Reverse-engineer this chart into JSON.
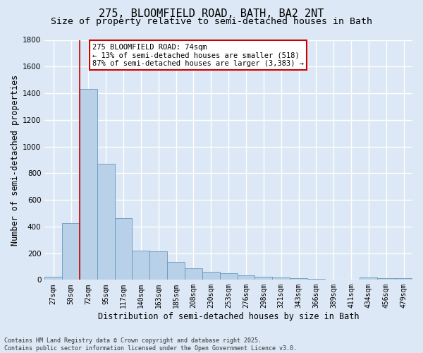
{
  "title_line1": "275, BLOOMFIELD ROAD, BATH, BA2 2NT",
  "title_line2": "Size of property relative to semi-detached houses in Bath",
  "xlabel": "Distribution of semi-detached houses by size in Bath",
  "ylabel": "Number of semi-detached properties",
  "bar_values": [
    25,
    425,
    1430,
    870,
    460,
    220,
    215,
    135,
    85,
    60,
    48,
    35,
    25,
    18,
    12,
    5,
    3,
    2,
    20,
    15,
    10
  ],
  "bin_labels": [
    "27sqm",
    "50sqm",
    "72sqm",
    "95sqm",
    "117sqm",
    "140sqm",
    "163sqm",
    "185sqm",
    "208sqm",
    "230sqm",
    "253sqm",
    "276sqm",
    "298sqm",
    "321sqm",
    "343sqm",
    "366sqm",
    "389sqm",
    "411sqm",
    "434sqm",
    "456sqm",
    "479sqm"
  ],
  "bar_color": "#b8d0e8",
  "bar_edge_color": "#6699bb",
  "property_bin_index": 2,
  "vline_color": "#cc0000",
  "annotation_line1": "275 BLOOMFIELD ROAD: 74sqm",
  "annotation_line2": "← 13% of semi-detached houses are smaller (518)",
  "annotation_line3": "87% of semi-detached houses are larger (3,383) →",
  "annotation_box_color": "#ffffff",
  "annotation_border_color": "#cc0000",
  "ylim": [
    0,
    1800
  ],
  "yticks": [
    0,
    200,
    400,
    600,
    800,
    1000,
    1200,
    1400,
    1600,
    1800
  ],
  "background_color": "#dce8f5",
  "grid_color": "#ffffff",
  "footnote": "Contains HM Land Registry data © Crown copyright and database right 2025.\nContains public sector information licensed under the Open Government Licence v3.0.",
  "title_fontsize": 11,
  "subtitle_fontsize": 9.5,
  "axis_label_fontsize": 8.5,
  "tick_fontsize": 7,
  "annotation_fontsize": 7.5,
  "footnote_fontsize": 6
}
